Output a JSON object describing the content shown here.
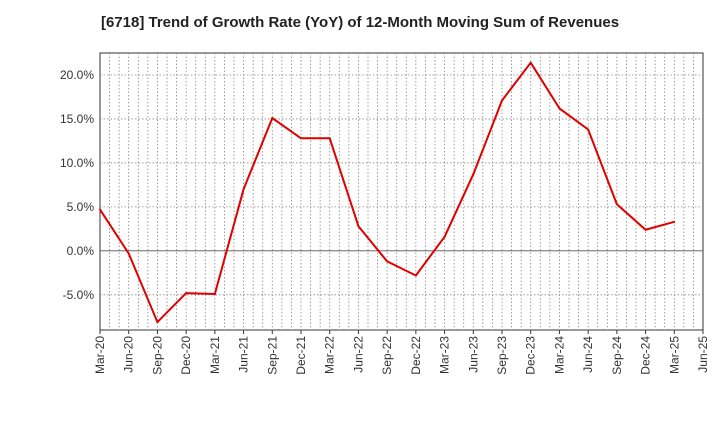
{
  "chart_data": {
    "type": "line",
    "title": "[6718]  Trend of Growth Rate (YoY) of 12-Month Moving Sum of Revenues",
    "xlabel": "",
    "ylabel": "",
    "ylim": [
      -9.0,
      22.5
    ],
    "x_ticks": [
      "Mar-20",
      "Jun-20",
      "Sep-20",
      "Dec-20",
      "Mar-21",
      "Jun-21",
      "Sep-21",
      "Dec-21",
      "Mar-22",
      "Jun-22",
      "Sep-22",
      "Dec-22",
      "Mar-23",
      "Jun-23",
      "Sep-23",
      "Dec-23",
      "Mar-24",
      "Jun-24",
      "Sep-24",
      "Dec-24",
      "Mar-25",
      "Jun-25"
    ],
    "y_ticks": [
      20.0,
      15.0,
      10.0,
      5.0,
      0.0,
      -5.0
    ],
    "y_tick_labels": [
      "20.0%",
      "15.0%",
      "10.0%",
      "5.0%",
      "0.0%",
      "-5.0%"
    ],
    "grid": true,
    "series": [
      {
        "color": "#e00000",
        "x": [
          "Mar-20",
          "Jun-20",
          "Sep-20",
          "Dec-20",
          "Mar-21",
          "Jun-21",
          "Sep-21",
          "Dec-21",
          "Mar-22",
          "Jun-22",
          "Sep-22",
          "Dec-22",
          "Mar-23",
          "Jun-23",
          "Sep-23",
          "Dec-23",
          "Mar-24",
          "Jun-24",
          "Sep-24",
          "Dec-24",
          "Mar-25"
        ],
        "values": [
          4.7,
          -0.3,
          -8.1,
          -4.8,
          -4.9,
          7.0,
          15.1,
          12.8,
          12.8,
          2.8,
          -1.2,
          -2.8,
          1.6,
          8.7,
          17.1,
          21.4,
          16.2,
          13.8,
          5.3,
          2.4,
          3.3
        ]
      }
    ]
  }
}
